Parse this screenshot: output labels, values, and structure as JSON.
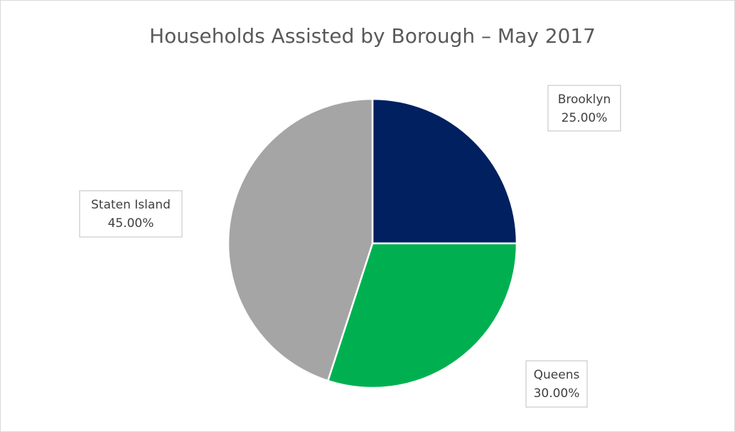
{
  "chart_data": {
    "type": "pie",
    "title": "Households Assisted by Borough – May 2017",
    "categories": [
      "Brooklyn",
      "Queens",
      "Staten Island"
    ],
    "values": [
      25,
      30,
      45
    ],
    "value_labels": [
      "25.00%",
      "30.00%",
      "45.00%"
    ],
    "colors": [
      "#002060",
      "#00b050",
      "#a5a5a5"
    ]
  }
}
